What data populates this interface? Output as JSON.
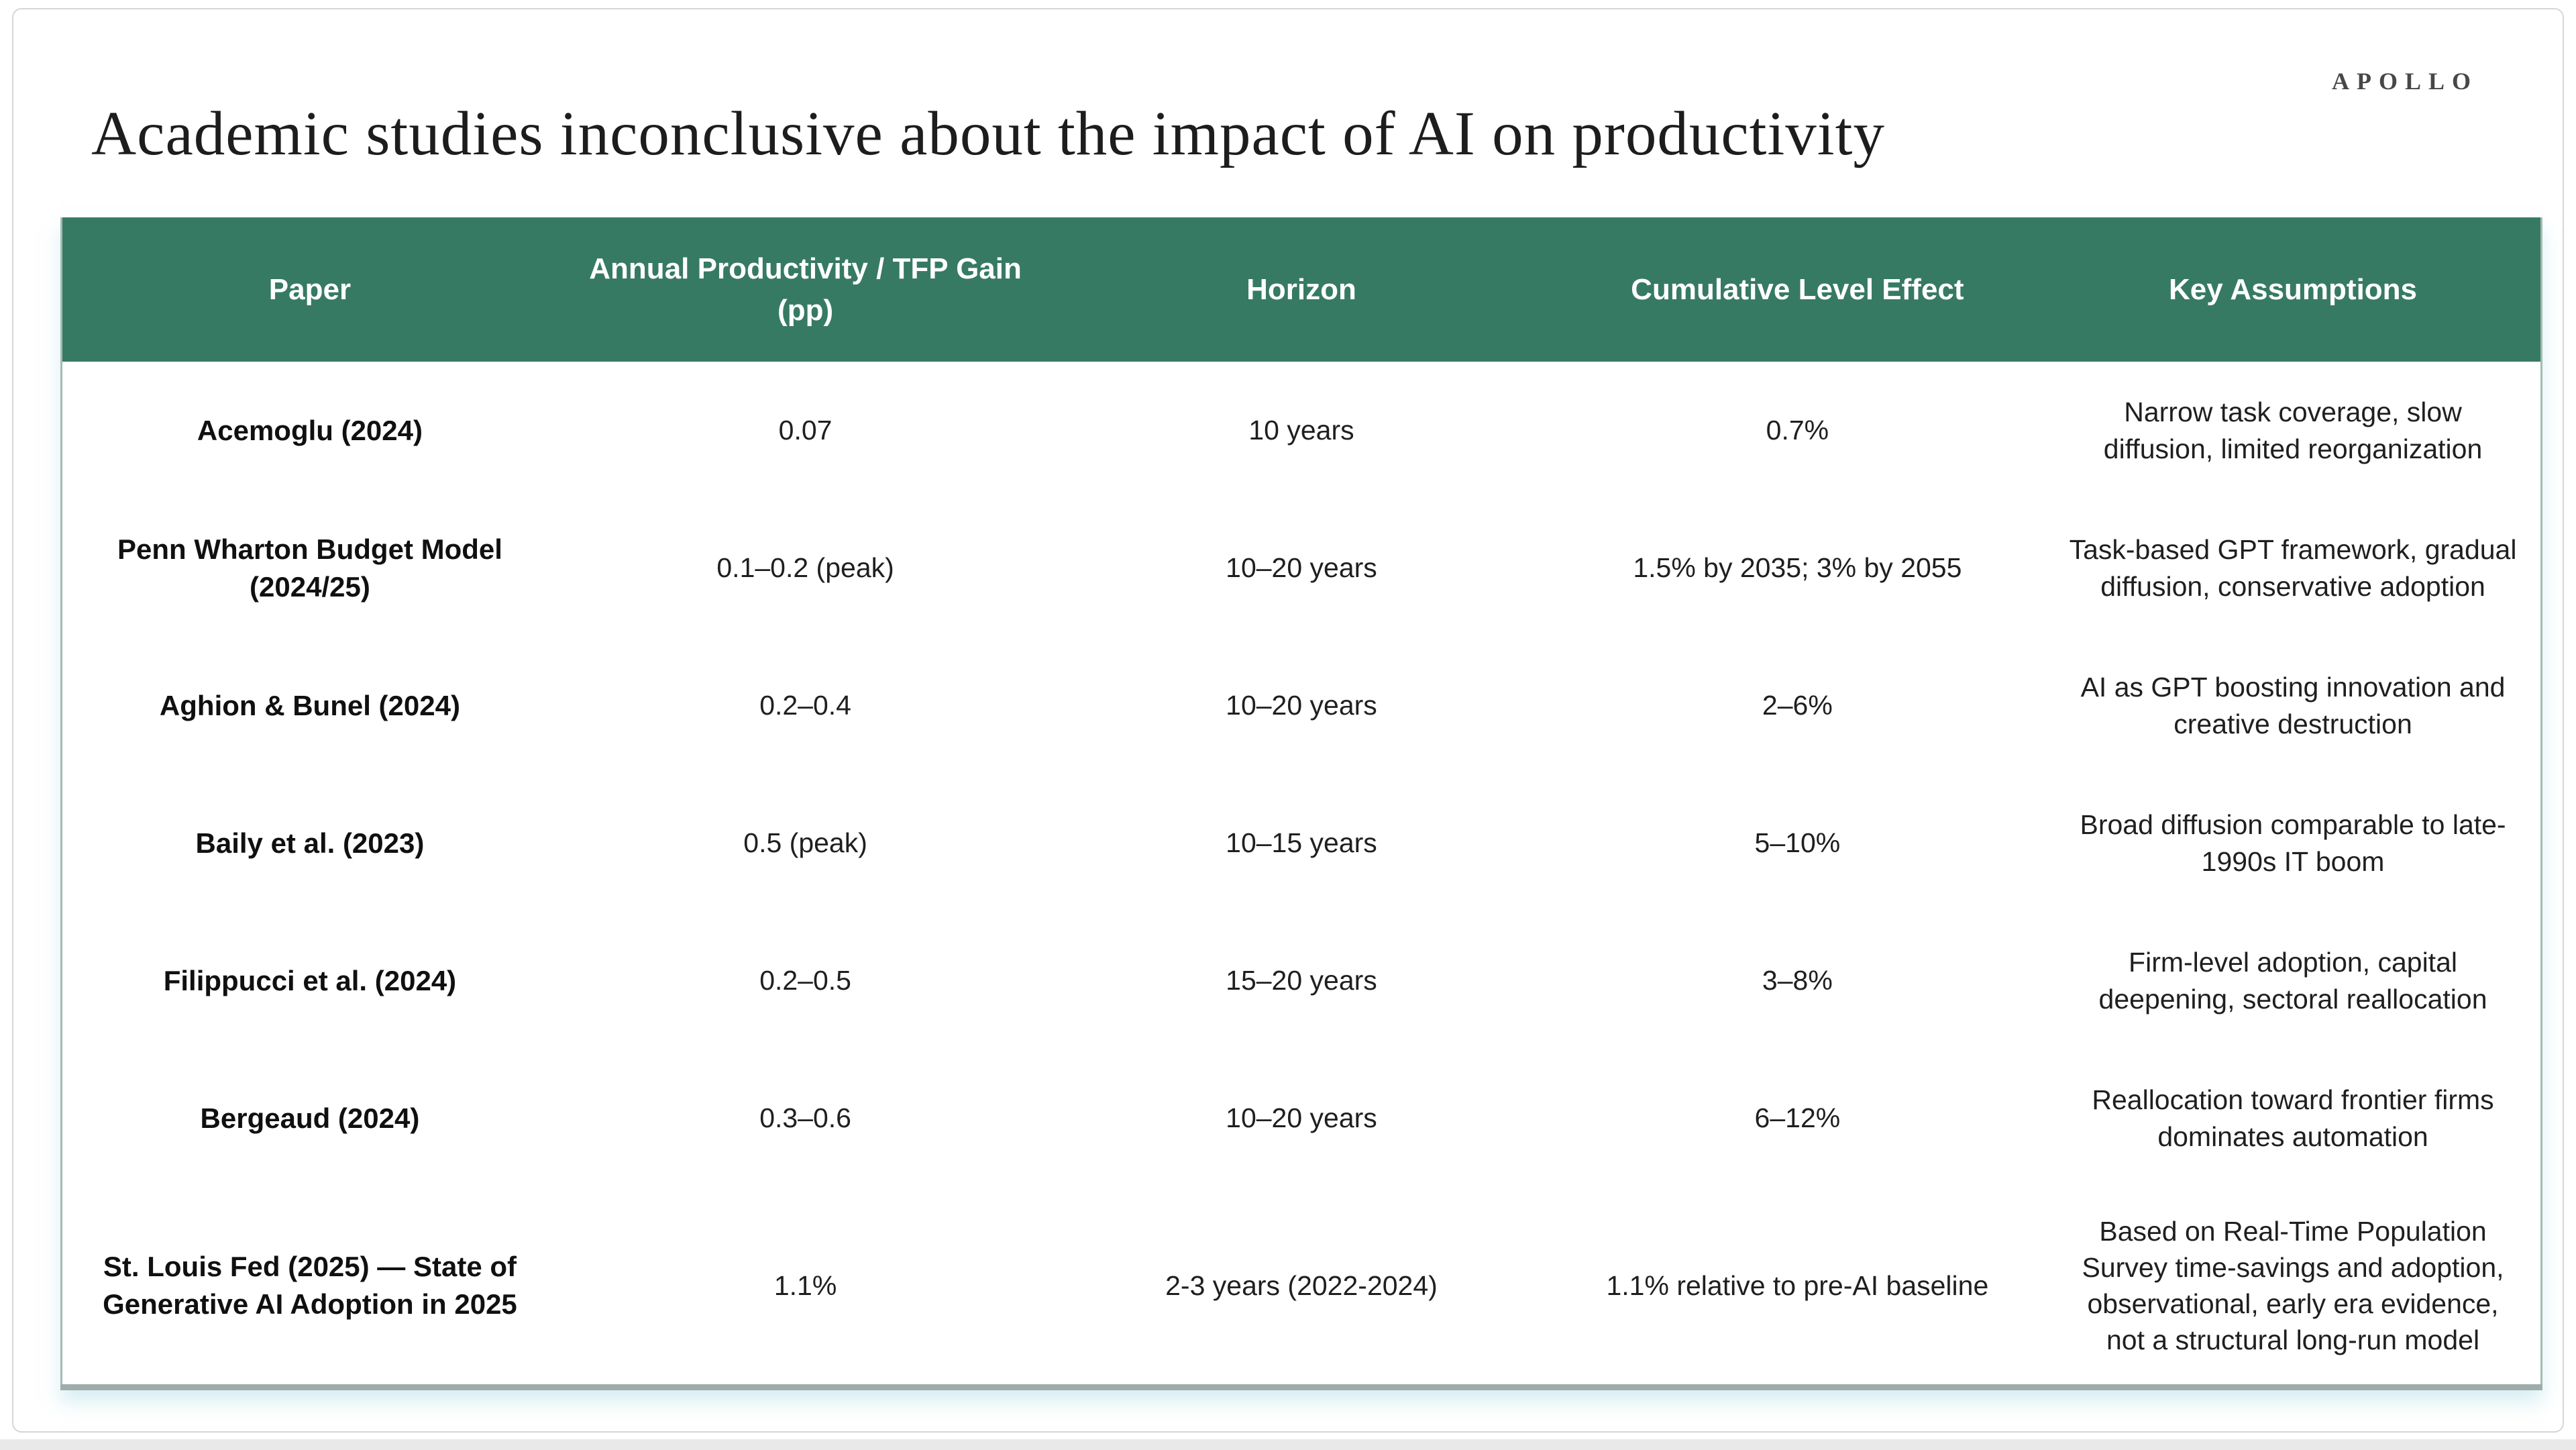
{
  "brand": {
    "logo": "APOLLO"
  },
  "title": "Academic studies inconclusive about the impact of AI on productivity",
  "colors": {
    "header_bg": "#377a64",
    "header_text": "#ffffff",
    "body_text": "#1f1f1f",
    "table_border": "#a5bab3",
    "table_bottom_border": "#9dada7",
    "card_border": "#d6d6d6",
    "bottom_strip": "#e9e9e9"
  },
  "table": {
    "columns": [
      "Paper",
      "Annual Productivity / TFP Gain (pp)",
      "Horizon",
      "Cumulative Level Effect",
      "Key Assumptions"
    ],
    "rows": [
      {
        "paper": "Acemoglu (2024)",
        "gain": "0.07",
        "horizon": "10 years",
        "effect": "0.7%",
        "assumptions": "Narrow task coverage, slow diffusion, limited reorganization"
      },
      {
        "paper": "Penn Wharton Budget Model (2024/25)",
        "gain": "0.1–0.2 (peak)",
        "horizon": "10–20 years",
        "effect": "1.5% by 2035; 3% by 2055",
        "assumptions": "Task-based GPT framework, gradual diffusion, conservative adoption"
      },
      {
        "paper": "Aghion & Bunel (2024)",
        "gain": "0.2–0.4",
        "horizon": "10–20 years",
        "effect": "2–6%",
        "assumptions": "AI as GPT boosting innovation and creative destruction"
      },
      {
        "paper": "Baily et al. (2023)",
        "gain": "0.5 (peak)",
        "horizon": "10–15 years",
        "effect": "5–10%",
        "assumptions": "Broad diffusion comparable to late-1990s IT boom"
      },
      {
        "paper": "Filippucci et al. (2024)",
        "gain": "0.2–0.5",
        "horizon": "15–20 years",
        "effect": "3–8%",
        "assumptions": "Firm-level adoption, capital deepening, sectoral reallocation"
      },
      {
        "paper": "Bergeaud (2024)",
        "gain": "0.3–0.6",
        "horizon": "10–20 years",
        "effect": "6–12%",
        "assumptions": "Reallocation toward frontier firms dominates automation"
      },
      {
        "paper": "St. Louis Fed (2025) — State of Generative AI Adoption in 2025",
        "gain": "1.1%",
        "horizon": "2-3 years (2022-2024)",
        "effect": "1.1% relative to pre-AI baseline",
        "assumptions": "Based on Real-Time Population Survey time-savings and adoption, observational, early era evidence, not a structural long-run model"
      }
    ]
  }
}
